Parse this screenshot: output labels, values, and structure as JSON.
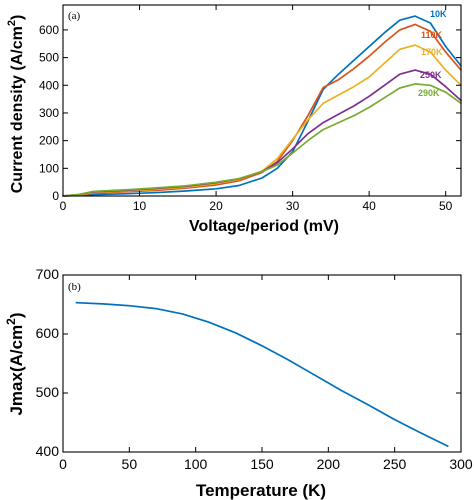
{
  "chart_data": [
    {
      "type": "line",
      "panel_label": "(a)",
      "xlabel": "Voltage/period (mV)",
      "ylabel": "Current density (A/cm",
      "ylabel_sup": "2",
      "ylabel_close": ")",
      "xlim": [
        0,
        52
      ],
      "ylim": [
        0,
        690
      ],
      "xticks": [
        "0",
        "10",
        "20",
        "30",
        "40",
        "50"
      ],
      "yticks": [
        "0",
        "100",
        "200",
        "300",
        "400",
        "500",
        "600"
      ],
      "xtick_values": [
        0,
        10,
        20,
        30,
        40,
        50
      ],
      "ytick_values": [
        0,
        100,
        200,
        300,
        400,
        500,
        600
      ],
      "series": [
        {
          "name": "10K",
          "color": "#0072bd",
          "x": [
            0,
            2,
            4,
            8,
            12,
            16,
            20,
            23,
            26,
            28,
            30,
            32,
            34,
            36,
            38,
            40,
            42,
            44,
            46,
            48,
            50,
            52
          ],
          "y": [
            0,
            2,
            5,
            8,
            12,
            18,
            26,
            38,
            65,
            100,
            160,
            270,
            385,
            440,
            490,
            540,
            590,
            635,
            650,
            625,
            540,
            470
          ]
        },
        {
          "name": "110K",
          "color": "#d95319",
          "x": [
            0,
            2,
            4,
            8,
            12,
            16,
            20,
            23,
            26,
            28,
            30,
            32,
            34,
            36,
            38,
            40,
            42,
            44,
            46,
            48,
            50,
            52
          ],
          "y": [
            0,
            3,
            10,
            15,
            20,
            28,
            40,
            55,
            85,
            125,
            200,
            290,
            392,
            420,
            460,
            505,
            555,
            600,
            620,
            595,
            520,
            455
          ]
        },
        {
          "name": "170K",
          "color": "#edb120",
          "x": [
            0,
            2,
            4,
            8,
            12,
            16,
            20,
            23,
            26,
            28,
            30,
            32,
            34,
            36,
            38,
            40,
            42,
            44,
            46,
            48,
            50,
            52
          ],
          "y": [
            0,
            4,
            13,
            18,
            24,
            32,
            45,
            60,
            90,
            135,
            205,
            275,
            335,
            365,
            395,
            430,
            480,
            530,
            545,
            520,
            455,
            400
          ]
        },
        {
          "name": "250K",
          "color": "#7e2f8e",
          "x": [
            0,
            2,
            4,
            8,
            12,
            16,
            20,
            23,
            26,
            28,
            30,
            32,
            34,
            36,
            38,
            40,
            42,
            44,
            46,
            48,
            50,
            52
          ],
          "y": [
            0,
            5,
            15,
            20,
            27,
            35,
            48,
            62,
            88,
            120,
            170,
            225,
            265,
            295,
            325,
            360,
            400,
            440,
            455,
            440,
            395,
            345
          ]
        },
        {
          "name": "290K",
          "color": "#77ac30",
          "x": [
            0,
            2,
            4,
            8,
            12,
            16,
            20,
            23,
            26,
            28,
            30,
            32,
            34,
            36,
            38,
            40,
            42,
            44,
            46,
            48,
            50,
            52
          ],
          "y": [
            0,
            5,
            17,
            22,
            29,
            37,
            50,
            63,
            88,
            112,
            155,
            200,
            240,
            265,
            290,
            320,
            355,
            390,
            405,
            400,
            375,
            335
          ]
        }
      ]
    },
    {
      "type": "line",
      "panel_label": "(b)",
      "xlabel": "Temperature (K)",
      "ylabel": "Jmax(A/cm",
      "ylabel_sup": "2",
      "ylabel_close": ")",
      "xlim": [
        0,
        300
      ],
      "ylim": [
        400,
        700
      ],
      "xticks": [
        "0",
        "50",
        "100",
        "150",
        "200",
        "250",
        "300"
      ],
      "yticks": [
        "400",
        "500",
        "600",
        "700"
      ],
      "xtick_values": [
        0,
        50,
        100,
        150,
        200,
        250,
        300
      ],
      "ytick_values": [
        400,
        500,
        600,
        700
      ],
      "series": [
        {
          "color": "#0072bd",
          "x": [
            10,
            30,
            50,
            70,
            90,
            110,
            130,
            150,
            170,
            190,
            210,
            230,
            250,
            270,
            290
          ],
          "y": [
            653,
            651,
            648,
            643,
            634,
            620,
            602,
            580,
            556,
            530,
            504,
            480,
            455,
            432,
            410
          ]
        }
      ]
    }
  ]
}
